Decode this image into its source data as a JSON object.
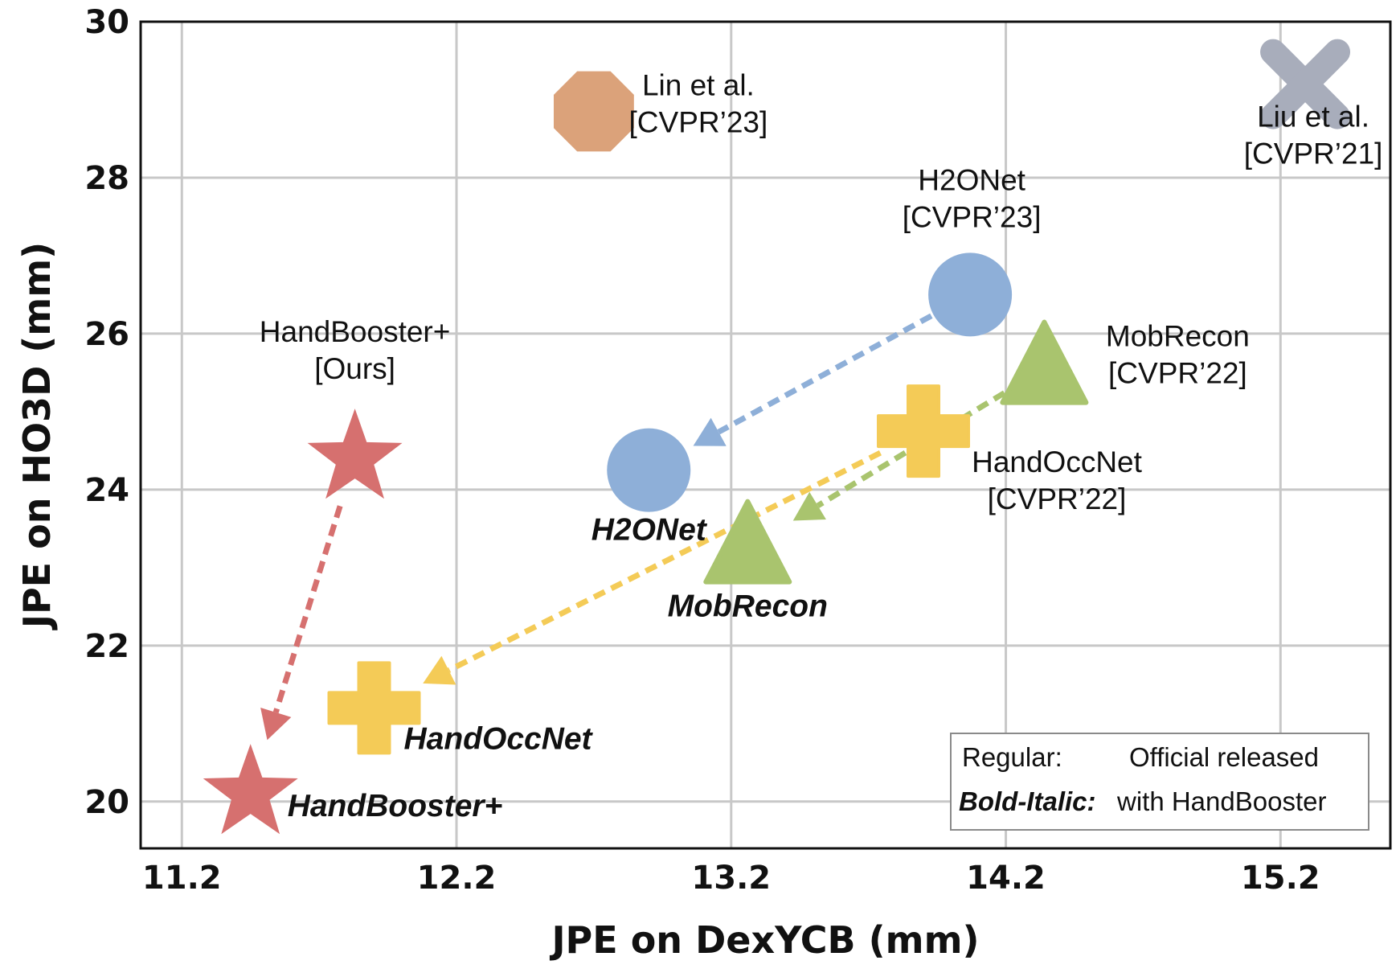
{
  "chart_data": {
    "type": "scatter",
    "xlabel": "JPE on DexYCB (mm)",
    "ylabel": "JPE on HO3D (mm)",
    "xlim": [
      11.05,
      15.6
    ],
    "ylim": [
      19.4,
      30
    ],
    "xticks": [
      "11.2",
      "12.2",
      "13.2",
      "14.2",
      "15.2"
    ],
    "yticks": [
      "20",
      "22",
      "24",
      "26",
      "28",
      "30"
    ],
    "grid": true,
    "legend_position": "bottom-right",
    "legend": {
      "row1_key": "Regular:",
      "row1_value": "Official released",
      "row2_key": "Bold-Italic:",
      "row2_value": "with HandBooster"
    },
    "colors": {
      "red": "#d6706f",
      "blue": "#8eafd8",
      "green": "#a9c46e",
      "yellow": "#f4cb57",
      "orange": "#dba27a",
      "gray": "#a8adbb"
    },
    "points": [
      {
        "id": "lin",
        "marker": "octagon",
        "color": "orange",
        "x": 12.7,
        "y": 28.85,
        "label_lines": [
          "Lin et al.",
          "[CVPR’23]"
        ],
        "style": "regular"
      },
      {
        "id": "liu",
        "marker": "x",
        "color": "gray",
        "x": 15.29,
        "y": 29.2,
        "label_lines": [
          "Liu et al.",
          "[CVPR’21]"
        ],
        "style": "regular"
      },
      {
        "id": "h2onet",
        "marker": "circle",
        "color": "blue",
        "x": 14.07,
        "y": 26.5,
        "label_lines": [
          "H2ONet",
          "[CVPR’23]"
        ],
        "style": "regular"
      },
      {
        "id": "mobrecon",
        "marker": "triangle",
        "color": "green",
        "x": 14.34,
        "y": 25.55,
        "label_lines": [
          "MobRecon",
          "[CVPR’22]"
        ],
        "style": "regular"
      },
      {
        "id": "handoccnet",
        "marker": "plus",
        "color": "yellow",
        "x": 13.9,
        "y": 24.75,
        "label_lines": [
          "HandOccNet",
          "[CVPR’22]"
        ],
        "style": "regular"
      },
      {
        "id": "handbooster",
        "marker": "star",
        "color": "red",
        "x": 11.83,
        "y": 24.4,
        "label_lines": [
          "HandBooster+",
          "[Ours]"
        ],
        "style": "regular"
      },
      {
        "id": "h2onet-hb",
        "marker": "circle",
        "color": "blue",
        "x": 12.9,
        "y": 24.25,
        "label_lines": [
          "H2ONet"
        ],
        "style": "bold-italic"
      },
      {
        "id": "mobrecon-hb",
        "marker": "triangle",
        "color": "green",
        "x": 13.26,
        "y": 23.25,
        "label_lines": [
          "MobRecon"
        ],
        "style": "bold-italic"
      },
      {
        "id": "handoccnet-hb",
        "marker": "plus",
        "color": "yellow",
        "x": 11.9,
        "y": 21.2,
        "label_lines": [
          "HandOccNet"
        ],
        "style": "bold-italic"
      },
      {
        "id": "handbooster-hb",
        "marker": "star",
        "color": "red",
        "x": 11.45,
        "y": 20.1,
        "label_lines": [
          "HandBooster+"
        ],
        "style": "bold-italic"
      }
    ],
    "arrows": [
      {
        "from": "h2onet",
        "to": "h2onet-hb",
        "color": "blue"
      },
      {
        "from": "mobrecon",
        "to": "mobrecon-hb",
        "color": "green"
      },
      {
        "from": "handoccnet",
        "to": "handoccnet-hb",
        "color": "yellow"
      },
      {
        "from": "handbooster",
        "to": "handbooster-hb",
        "color": "red"
      }
    ]
  }
}
